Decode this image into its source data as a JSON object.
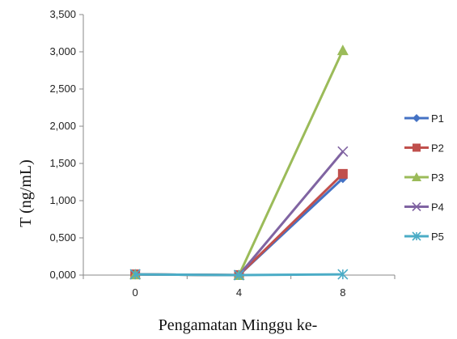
{
  "chart_data": {
    "type": "line",
    "title": "",
    "xlabel": "Pengamatan Minggu ke-",
    "ylabel": "T (ng/mL)",
    "categories": [
      "0",
      "4",
      "8"
    ],
    "ylim": [
      0,
      3.5
    ],
    "y_ticks": [
      "0,000",
      "0,500",
      "1,000",
      "1,500",
      "2,000",
      "2,500",
      "3,000",
      "3,500"
    ],
    "grid": false,
    "legend_position": "right",
    "series": [
      {
        "name": "P1",
        "values": [
          0.01,
          0.0,
          1.3
        ],
        "color": "#4472C4",
        "marker": "diamond"
      },
      {
        "name": "P2",
        "values": [
          0.01,
          0.0,
          1.36
        ],
        "color": "#C0504D",
        "marker": "square"
      },
      {
        "name": "P3",
        "values": [
          0.01,
          0.0,
          3.02
        ],
        "color": "#9BBB59",
        "marker": "triangle"
      },
      {
        "name": "P4",
        "values": [
          0.01,
          0.0,
          1.66
        ],
        "color": "#8064A2",
        "marker": "x"
      },
      {
        "name": "P5",
        "values": [
          0.01,
          0.0,
          0.01
        ],
        "color": "#4BACC6",
        "marker": "star"
      }
    ]
  }
}
